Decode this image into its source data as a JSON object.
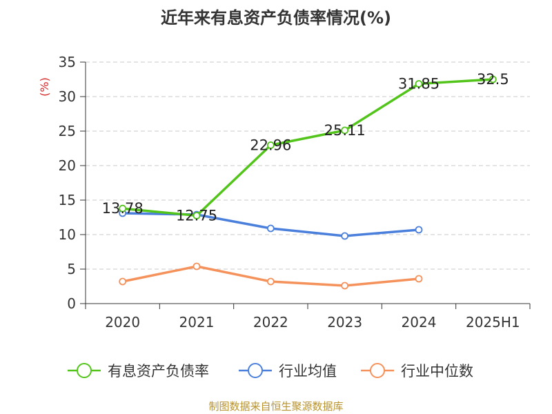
{
  "chart_data": {
    "type": "line",
    "title": "近年来有息资产负债率情况(%)",
    "ylabel": "(%)",
    "categories": [
      "2020",
      "2021",
      "2022",
      "2023",
      "2024",
      "2025H1"
    ],
    "ylim": [
      0,
      35
    ],
    "yticks": [
      0,
      5,
      10,
      15,
      20,
      25,
      30,
      35
    ],
    "grid": true,
    "legend_position": "bottom",
    "series": [
      {
        "name": "有息资产负债率",
        "color": "#52c41a",
        "values": [
          13.78,
          12.75,
          22.96,
          25.11,
          31.85,
          32.5
        ],
        "labels": [
          "13.78",
          "12.75",
          "22.96",
          "25.11",
          "31.85",
          "32.5"
        ]
      },
      {
        "name": "行业均值",
        "color": "#4a7fdc",
        "values": [
          13.1,
          12.9,
          10.9,
          9.8,
          10.7,
          null
        ]
      },
      {
        "name": "行业中位数",
        "color": "#f5915a",
        "values": [
          3.2,
          5.4,
          3.2,
          2.6,
          3.6,
          null
        ]
      }
    ],
    "source": "制图数据来自恒生聚源数据库"
  }
}
